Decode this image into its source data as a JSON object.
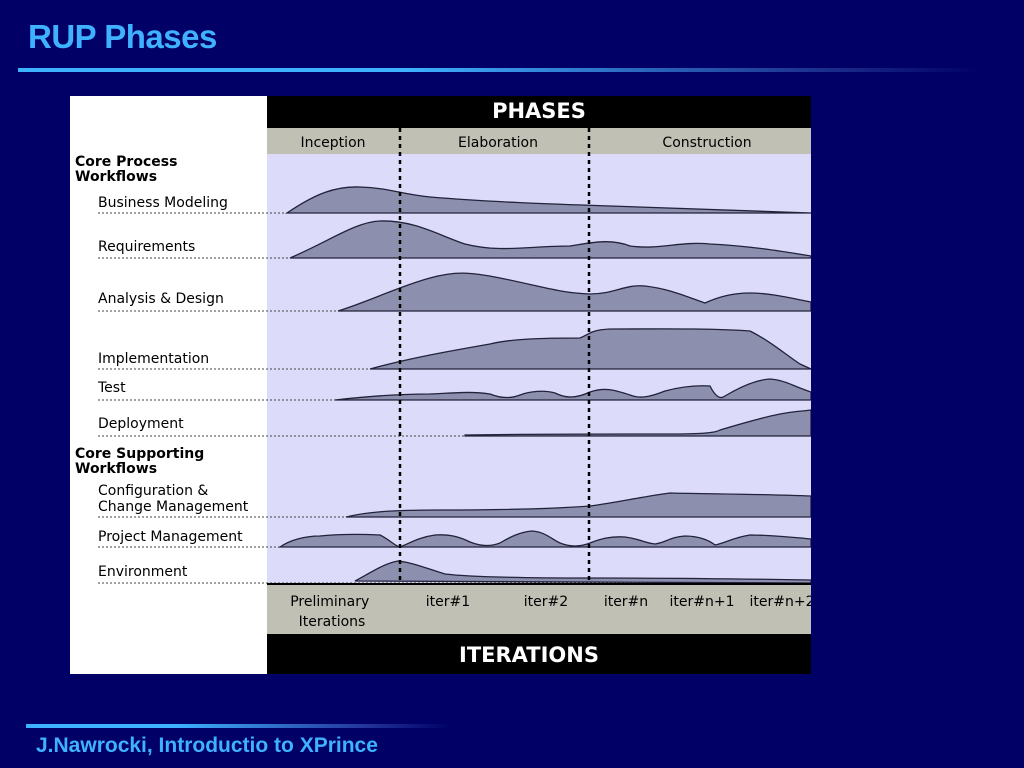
{
  "slide": {
    "title": "RUP Phases",
    "footer": "J.Nawrocki, Introductio to XPrince"
  },
  "diagram": {
    "top_header": "PHASES",
    "bottom_header": "ITERATIONS",
    "phases": [
      "Inception",
      "Elaboration",
      "Construction"
    ],
    "core_process_header": [
      "Core Process",
      "Workflows"
    ],
    "core_supporting_header": [
      "Core Supporting",
      "Workflows"
    ],
    "workflows": [
      {
        "label": [
          "Business  Modeling"
        ]
      },
      {
        "label": [
          "Requirements"
        ]
      },
      {
        "label": [
          "Analysis  &  Design"
        ]
      },
      {
        "label": [
          "Implementation"
        ]
      },
      {
        "label": [
          "Test"
        ]
      },
      {
        "label": [
          "Deployment"
        ]
      },
      {
        "label": [
          "Configuration  &",
          "Change  Management"
        ]
      },
      {
        "label": [
          "Project  Management"
        ]
      },
      {
        "label": [
          "Environment"
        ]
      }
    ],
    "iterations": [
      {
        "label": [
          "Preliminary",
          "Iterations"
        ]
      },
      {
        "label": [
          "iter#1"
        ]
      },
      {
        "label": [
          "iter#2"
        ]
      },
      {
        "label": [
          "iter#n"
        ]
      },
      {
        "label": [
          "iter#n+1"
        ]
      },
      {
        "label": [
          "iter#n+2"
        ]
      }
    ],
    "colors": {
      "band": "#dcdcfa",
      "hump_fill": "#8c8fae",
      "hump_stroke": "#22223a",
      "phase_bar": "#c0c0b4",
      "header": "#000000"
    }
  }
}
